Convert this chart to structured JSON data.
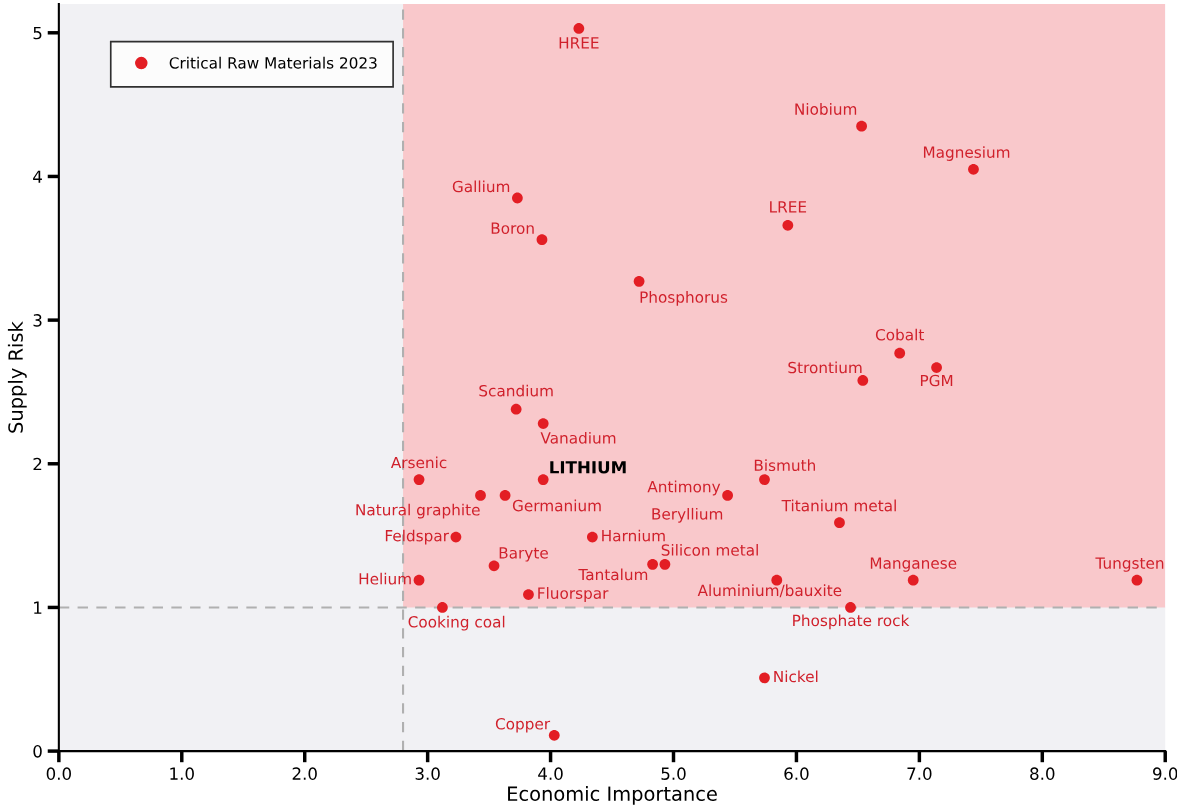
{
  "chart_data": {
    "type": "scatter",
    "xlabel": "Economic Importance",
    "ylabel": "Supply Risk",
    "xlim": [
      0,
      9.0
    ],
    "ylim": [
      0,
      5.2
    ],
    "xticks": [
      {
        "value": 0,
        "label": "0.0"
      },
      {
        "value": 1,
        "label": "1.0"
      },
      {
        "value": 2,
        "label": "2.0"
      },
      {
        "value": 3,
        "label": "3.0"
      },
      {
        "value": 4,
        "label": "4.0"
      },
      {
        "value": 5,
        "label": "5.0"
      },
      {
        "value": 6,
        "label": "6.0"
      },
      {
        "value": 7,
        "label": "7.0"
      },
      {
        "value": 8,
        "label": "8.0"
      },
      {
        "value": 9,
        "label": "9.0"
      }
    ],
    "yticks": [
      0,
      1,
      2,
      3,
      4,
      5
    ],
    "grid": false,
    "legend": "top left",
    "marker": "circle",
    "ref_lines": [
      {
        "axis": "x",
        "value": 2.8,
        "color": "#b0b0b0",
        "line_style": "dashed"
      },
      {
        "axis": "y",
        "value": 1.0,
        "color": "#b0b0b0",
        "line_style": "dashed"
      }
    ],
    "bands": [
      {
        "axis": "x",
        "from": 2.8,
        "to": 9.0,
        "color": "#f9c8cb"
      }
    ],
    "series": [
      {
        "name": "Critical Raw Materials 2023",
        "color": "#e31e24",
        "x": [
          4.23,
          6.53,
          7.44,
          3.73,
          3.93,
          5.93,
          4.72,
          6.84,
          7.14,
          6.54,
          3.72,
          3.94,
          2.93,
          3.94,
          3.43,
          3.63,
          3.23,
          3.54,
          2.93,
          3.82,
          3.12,
          4.03,
          5.74,
          5.44,
          4.34,
          4.83,
          4.93,
          6.35,
          5.84,
          6.95,
          8.77,
          6.44,
          5.74
        ],
        "values": [
          5.03,
          4.35,
          4.05,
          3.85,
          3.56,
          3.66,
          3.27,
          2.77,
          2.67,
          2.58,
          2.38,
          2.28,
          1.89,
          1.89,
          1.78,
          1.78,
          1.49,
          1.29,
          1.19,
          1.09,
          1.0,
          0.11,
          1.89,
          1.78,
          1.49,
          1.3,
          1.3,
          1.59,
          1.19,
          1.19,
          1.19,
          1.0,
          0.51
        ]
      }
    ],
    "annotations": [
      {
        "text": "HREE",
        "x": 4.23,
        "y": 5.03
      },
      {
        "text": "Niobium",
        "x": 6.53,
        "y": 4.35
      },
      {
        "text": "Magnesium",
        "x": 7.44,
        "y": 4.05
      },
      {
        "text": "Gallium",
        "x": 3.73,
        "y": 3.85
      },
      {
        "text": "Boron",
        "x": 3.93,
        "y": 3.56
      },
      {
        "text": "LREE",
        "x": 5.93,
        "y": 3.66
      },
      {
        "text": "Phosphorus",
        "x": 4.72,
        "y": 3.27
      },
      {
        "text": "Cobalt",
        "x": 6.84,
        "y": 2.77
      },
      {
        "text": "PGM",
        "x": 7.14,
        "y": 2.67
      },
      {
        "text": "Strontium",
        "x": 6.54,
        "y": 2.58
      },
      {
        "text": "Scandium",
        "x": 3.72,
        "y": 2.38
      },
      {
        "text": "Vanadium",
        "x": 3.94,
        "y": 2.28
      },
      {
        "text": "Arsenic",
        "x": 2.93,
        "y": 1.89
      },
      {
        "text": "LITHIUM",
        "x": 3.94,
        "y": 1.89
      },
      {
        "text": "Natural graphite",
        "x": 3.43,
        "y": 1.78
      },
      {
        "text": "Germanium",
        "x": 3.63,
        "y": 1.78
      },
      {
        "text": "Feldspar",
        "x": 3.23,
        "y": 1.49
      },
      {
        "text": "Baryte",
        "x": 3.54,
        "y": 1.29
      },
      {
        "text": "Helium",
        "x": 2.93,
        "y": 1.19
      },
      {
        "text": "Fluorspar",
        "x": 3.82,
        "y": 1.09
      },
      {
        "text": "Cooking coal",
        "x": 3.12,
        "y": 1.0
      },
      {
        "text": "Copper",
        "x": 4.03,
        "y": 0.11
      },
      {
        "text": "Bismuth",
        "x": 5.74,
        "y": 1.89
      },
      {
        "text": "Antimony",
        "x": 5.44,
        "y": 1.78
      },
      {
        "text": "Beryllium",
        "x": 5.44,
        "y": 1.78
      },
      {
        "text": "Harnium",
        "x": 4.34,
        "y": 1.49
      },
      {
        "text": "Tantalum",
        "x": 4.83,
        "y": 1.3
      },
      {
        "text": "Silicon metal",
        "x": 4.93,
        "y": 1.3
      },
      {
        "text": "Titanium metal",
        "x": 6.35,
        "y": 1.59
      },
      {
        "text": "Aluminium/bauxite",
        "x": 5.84,
        "y": 1.19
      },
      {
        "text": "Manganese",
        "x": 6.95,
        "y": 1.19
      },
      {
        "text": "Tungsten",
        "x": 8.77,
        "y": 1.19
      },
      {
        "text": "Phosphate rock",
        "x": 6.44,
        "y": 1.0
      },
      {
        "text": "Nickel",
        "x": 5.74,
        "y": 0.51
      }
    ]
  }
}
